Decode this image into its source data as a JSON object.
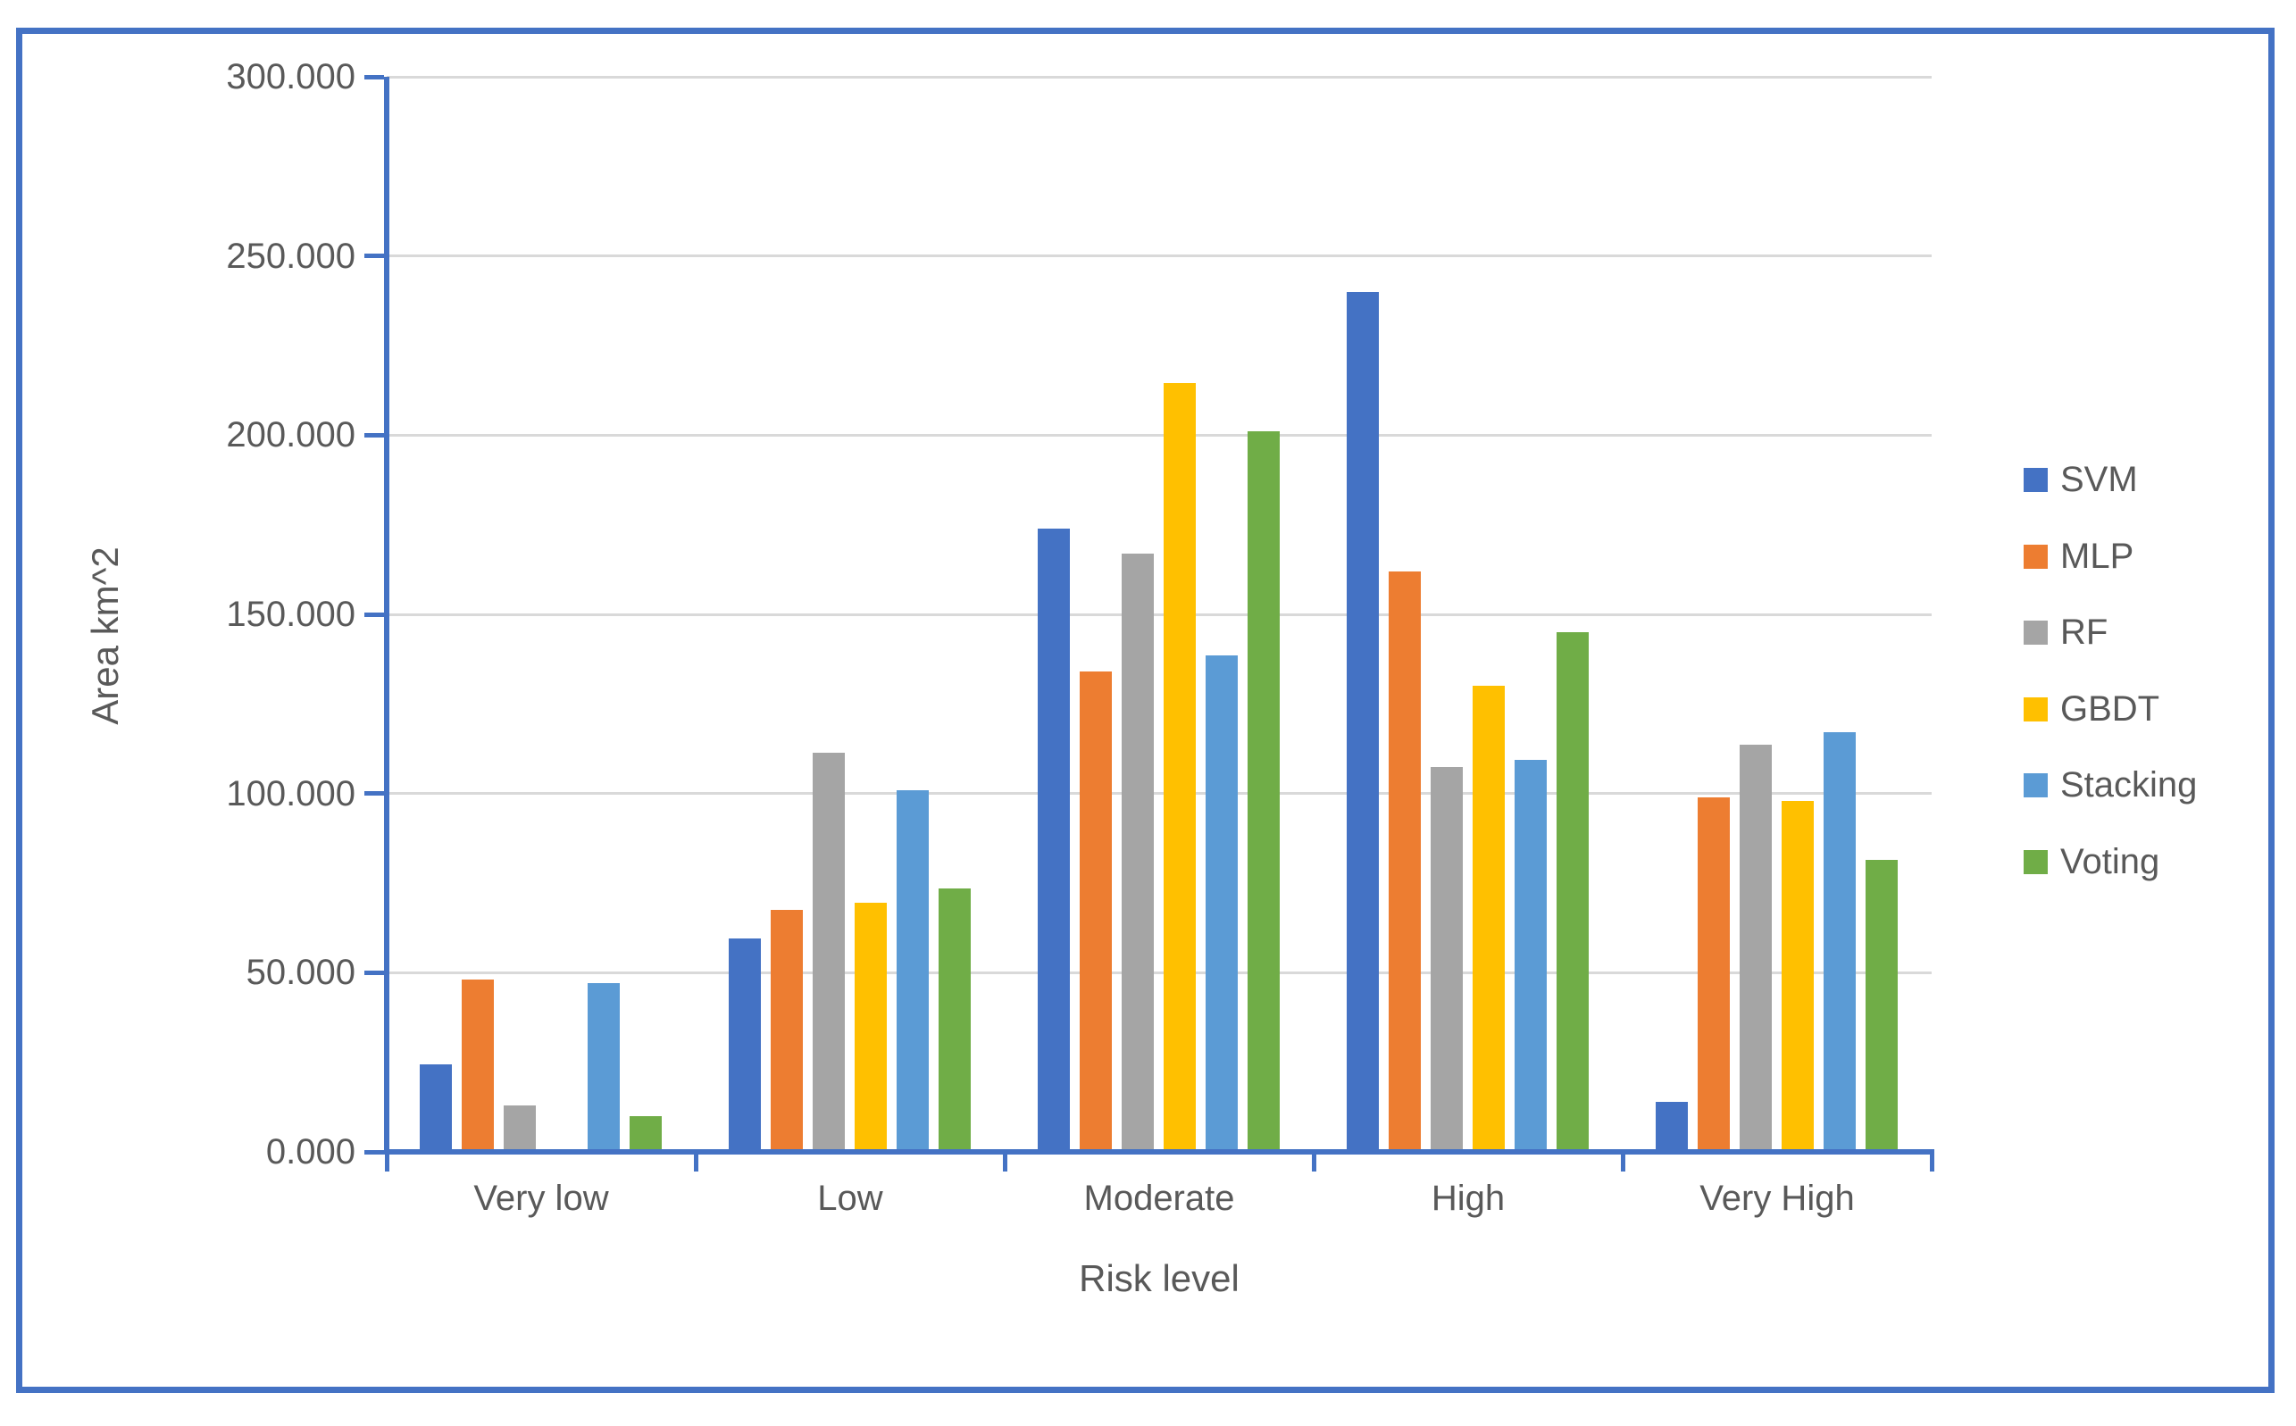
{
  "figure": {
    "border_color": "#4472C4",
    "background_color": "#ffffff"
  },
  "chart_data": {
    "type": "bar",
    "title": "",
    "xlabel": "Risk level",
    "ylabel": "Area km^2",
    "categories": [
      "Very low",
      "Low",
      "Moderate",
      "High",
      "Very High"
    ],
    "series": [
      {
        "name": "SVM",
        "color": "#4472C4",
        "values": [
          24.5,
          59.5,
          174,
          240,
          14
        ]
      },
      {
        "name": "MLP",
        "color": "#ED7D31",
        "values": [
          48,
          67.5,
          134,
          162,
          99
        ]
      },
      {
        "name": "RF",
        "color": "#A5A5A5",
        "values": [
          13,
          111.5,
          167,
          107.5,
          113.5
        ]
      },
      {
        "name": "GBDT",
        "color": "#FFC000",
        "values": [
          0,
          69.5,
          214.5,
          130,
          98
        ]
      },
      {
        "name": "Stacking",
        "color": "#5B9BD5",
        "values": [
          47,
          101,
          138.5,
          109.5,
          117
        ]
      },
      {
        "name": "Voting",
        "color": "#70AD47",
        "values": [
          10,
          73.5,
          201,
          145,
          81.5
        ]
      }
    ],
    "ylim": [
      0,
      300
    ],
    "y_ticks": [
      {
        "value": 0,
        "label": "0.000"
      },
      {
        "value": 50,
        "label": "50.000"
      },
      {
        "value": 100,
        "label": "100.000"
      },
      {
        "value": 150,
        "label": "150.000"
      },
      {
        "value": 200,
        "label": "200.000"
      },
      {
        "value": 250,
        "label": "250.000"
      },
      {
        "value": 300,
        "label": "300.000"
      }
    ],
    "grid": true,
    "legend_position": "right",
    "axis_color": "#4472C4",
    "gridline_color": "#D9D9D9",
    "text_color": "#595959"
  }
}
